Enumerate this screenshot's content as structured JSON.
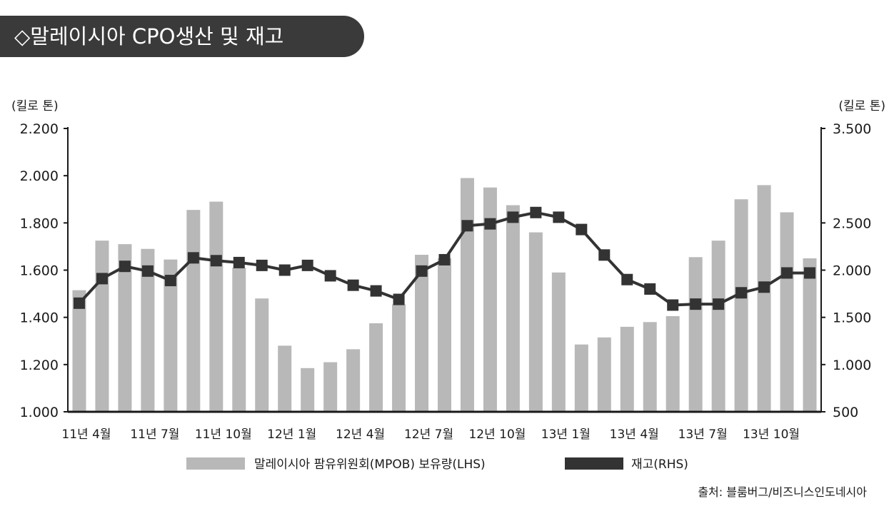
{
  "title": "◇말레이시아 CPO생산 및 재고",
  "source": "출처: 블룸버그/비즈니스인도네시아",
  "colors": {
    "bar": "#b8b8b8",
    "line": "#333333",
    "banner": "#3a3a3a"
  },
  "chart_data": {
    "type": "bar+line",
    "left_unit": "(킬로 톤)",
    "right_unit": "(킬로 톤)",
    "left_axis": {
      "min": 1000,
      "max": 2200,
      "ticks": [
        "1.000",
        "1.200",
        "1.400",
        "1.600",
        "1.800",
        "2.000",
        "2.200"
      ]
    },
    "right_axis": {
      "min": 500,
      "max": 3500,
      "ticks": [
        "500",
        "1.000",
        "1.500",
        "2.000",
        "2.500",
        "3.500"
      ]
    },
    "x_tick_labels": [
      "11년 4월",
      "11년 7월",
      "11년 10월",
      "12년 1월",
      "12년 4월",
      "12년 7월",
      "12년 10월",
      "13년 1월",
      "13년 4월",
      "13년 7월",
      "13년 10월"
    ],
    "series": [
      {
        "name": "말레이시아 팜유위원회(MPOB) 보유량(LHS)",
        "type": "bar",
        "axis": "left",
        "values": [
          1515,
          1725,
          1710,
          1690,
          1645,
          1855,
          1890,
          1610,
          1480,
          1280,
          1185,
          1210,
          1265,
          1375,
          1455,
          1665,
          1650,
          1990,
          1950,
          1875,
          1760,
          1590,
          1285,
          1315,
          1360,
          1380,
          1405,
          1655,
          1725,
          1900,
          1960,
          1845,
          1650
        ]
      },
      {
        "name": "재고(RHS)",
        "type": "line",
        "axis": "right",
        "values": [
          1650,
          1910,
          2040,
          1990,
          1890,
          2130,
          2100,
          2080,
          2050,
          2000,
          2050,
          1940,
          1840,
          1780,
          1690,
          1990,
          2110,
          2470,
          2490,
          2560,
          2610,
          2560,
          2430,
          2160,
          1900,
          1800,
          1630,
          1640,
          1640,
          1760,
          1820,
          1970,
          1970
        ]
      }
    ]
  }
}
